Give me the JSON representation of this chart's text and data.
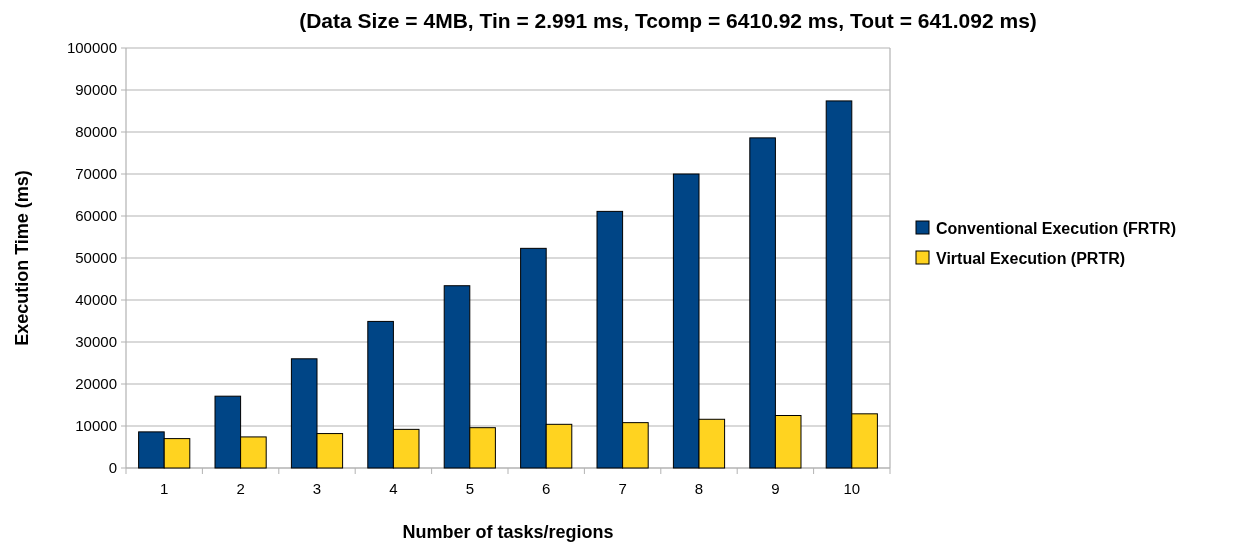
{
  "chart_data": {
    "type": "bar",
    "title": "(Data Size = 4MB, Tin = 2.991 ms, Tcomp = 6410.92 ms, Tout = 641.092 ms)",
    "xlabel": "Number of tasks/regions",
    "ylabel": "Execution Time (ms)",
    "categories": [
      "1",
      "2",
      "3",
      "4",
      "5",
      "6",
      "7",
      "8",
      "9",
      "10"
    ],
    "series": [
      {
        "name": "Conventional Execution (FRTR)",
        "color": "#004586",
        "values": [
          8600,
          17100,
          26000,
          34900,
          43400,
          52300,
          61100,
          70000,
          78600,
          87400
        ]
      },
      {
        "name": "Virtual Execution (PRTR)",
        "color": "#ffd320",
        "values": [
          7000,
          7400,
          8200,
          9200,
          9600,
          10400,
          10800,
          11600,
          12500,
          12900
        ]
      }
    ],
    "ylim": [
      0,
      100000
    ],
    "yticks": [
      0,
      10000,
      20000,
      30000,
      40000,
      50000,
      60000,
      70000,
      80000,
      90000,
      100000
    ],
    "grid": "y",
    "legend": "right"
  }
}
